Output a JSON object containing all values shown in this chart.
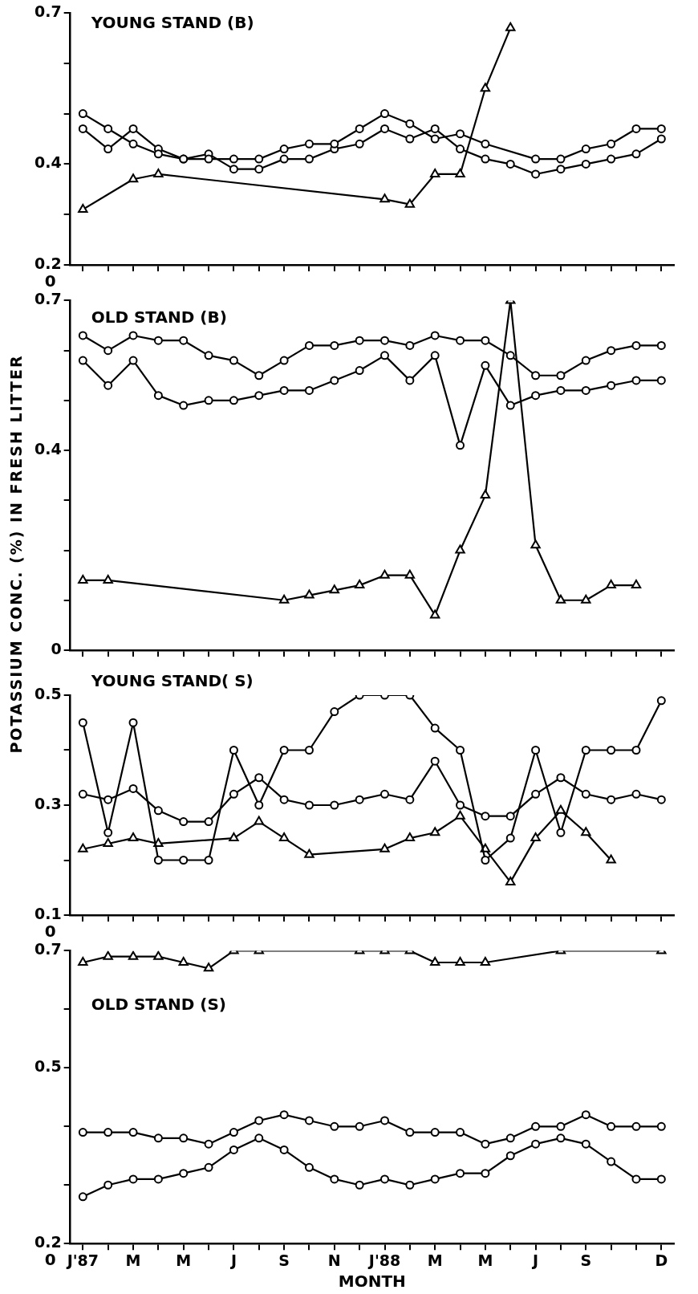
{
  "chart_data": [
    {
      "type": "line",
      "title": "YOUNG STAND (B)",
      "tick_labels": "y",
      "grid": false,
      "legend": false,
      "annotations": [
        "0"
      ],
      "categories": [
        null,
        null,
        null,
        null,
        null,
        null,
        null,
        null,
        null,
        null,
        null,
        null,
        null,
        null,
        null,
        null,
        null,
        null,
        null,
        null,
        null,
        null,
        null,
        null
      ],
      "ylim": [
        0.2,
        0.7
      ],
      "yticks": [
        0.7,
        {
          "value": 0.6,
          "label": null
        },
        {
          "value": 0.5,
          "label": null
        },
        0.4,
        {
          "value": 0.3,
          "label": null
        },
        0.2
      ],
      "series": [
        {
          "color": "#000000",
          "marker": "circle",
          "values": [
            0.5,
            0.47,
            0.44,
            0.42,
            0.41,
            0.41,
            0.41,
            0.41,
            0.43,
            0.44,
            0.44,
            0.47,
            0.5,
            0.48,
            0.45,
            0.46,
            0.44,
            null,
            0.41,
            0.41,
            0.43,
            0.44,
            0.47,
            0.47
          ]
        },
        {
          "color": "#000000",
          "marker": "circle",
          "values": [
            0.47,
            0.43,
            0.47,
            0.43,
            0.41,
            0.42,
            0.39,
            0.39,
            0.41,
            0.41,
            0.43,
            0.44,
            0.47,
            0.45,
            0.47,
            0.43,
            0.41,
            0.4,
            0.38,
            0.39,
            0.4,
            0.41,
            0.42,
            0.45
          ]
        },
        {
          "color": "#000000",
          "marker": "triangle",
          "values": [
            0.31,
            null,
            0.37,
            0.38,
            null,
            null,
            null,
            null,
            null,
            null,
            null,
            null,
            0.33,
            0.32,
            0.38,
            0.38,
            0.55,
            0.67,
            null,
            null,
            null,
            null,
            null,
            null
          ]
        }
      ]
    },
    {
      "type": "line",
      "title": "OLD STAND (B)",
      "ylabel": "POTASSIUM CONC. (%) IN FRESH LITTER",
      "tick_labels": "y",
      "grid": false,
      "legend": false,
      "categories": [
        null,
        null,
        null,
        null,
        null,
        null,
        null,
        null,
        null,
        null,
        null,
        null,
        null,
        null,
        null,
        null,
        null,
        null,
        null,
        null,
        null,
        null,
        null,
        null
      ],
      "ylim": [
        0,
        0.7
      ],
      "yticks": [
        0.7,
        {
          "value": 0.6,
          "label": null
        },
        {
          "value": 0.5,
          "label": null
        },
        0.4,
        {
          "value": 0.3,
          "label": null
        },
        {
          "value": 0.2,
          "label": null
        },
        {
          "value": 0.1,
          "label": null
        },
        0
      ],
      "series": [
        {
          "color": "#000000",
          "marker": "circle",
          "values": [
            0.63,
            0.6,
            0.63,
            0.62,
            0.62,
            0.59,
            0.58,
            0.55,
            0.58,
            0.61,
            0.61,
            0.62,
            0.62,
            0.61,
            0.63,
            0.62,
            0.62,
            0.59,
            0.55,
            0.55,
            0.58,
            0.6,
            0.61,
            0.61
          ]
        },
        {
          "color": "#000000",
          "marker": "circle",
          "values": [
            0.58,
            0.53,
            0.58,
            0.51,
            0.49,
            0.5,
            0.5,
            0.51,
            0.52,
            0.52,
            0.54,
            0.56,
            0.59,
            0.54,
            0.59,
            0.41,
            0.57,
            0.49,
            0.51,
            0.52,
            0.52,
            0.53,
            0.54,
            0.54
          ]
        },
        {
          "color": "#000000",
          "marker": "triangle",
          "values": [
            0.14,
            0.14,
            null,
            null,
            null,
            null,
            null,
            null,
            0.1,
            0.11,
            0.12,
            0.13,
            0.15,
            0.15,
            0.07,
            0.2,
            0.31,
            0.7,
            0.21,
            0.1,
            0.1,
            0.13,
            0.13,
            null
          ]
        }
      ]
    },
    {
      "type": "line",
      "title": "YOUNG STAND( S)",
      "tick_labels": "y",
      "grid": false,
      "legend": false,
      "annotations": [
        "0"
      ],
      "categories": [
        null,
        null,
        null,
        null,
        null,
        null,
        null,
        null,
        null,
        null,
        null,
        null,
        null,
        null,
        null,
        null,
        null,
        null,
        null,
        null,
        null,
        null,
        null,
        null
      ],
      "ylim": [
        0.1,
        0.5
      ],
      "yticks": [
        0.5,
        {
          "value": 0.4,
          "label": null
        },
        0.3,
        {
          "value": 0.2,
          "label": null
        },
        0.1
      ],
      "series": [
        {
          "color": "#000000",
          "marker": "circle",
          "values": [
            0.45,
            0.25,
            0.45,
            0.2,
            0.2,
            0.2,
            0.4,
            0.3,
            0.4,
            0.4,
            0.47,
            0.5,
            0.5,
            0.5,
            0.44,
            0.4,
            0.2,
            0.24,
            0.4,
            0.25,
            0.4,
            0.4,
            0.4,
            0.49
          ]
        },
        {
          "color": "#000000",
          "marker": "circle",
          "values": [
            0.32,
            0.31,
            0.33,
            0.29,
            0.27,
            0.27,
            0.32,
            0.35,
            0.31,
            0.3,
            0.3,
            0.31,
            0.32,
            0.31,
            0.38,
            0.3,
            0.28,
            0.28,
            0.32,
            0.35,
            0.32,
            0.31,
            0.32,
            0.31
          ]
        },
        {
          "color": "#000000",
          "marker": "triangle",
          "values": [
            0.22,
            0.23,
            0.24,
            0.23,
            null,
            null,
            0.24,
            0.27,
            0.24,
            0.21,
            null,
            null,
            0.22,
            0.24,
            0.25,
            0.28,
            0.22,
            0.16,
            0.24,
            0.29,
            0.25,
            0.2,
            null,
            null
          ]
        }
      ]
    },
    {
      "type": "line",
      "title": "OLD STAND (S)",
      "xlabel": "MONTH",
      "grid": false,
      "legend": false,
      "annotations": [
        "0"
      ],
      "categories": [
        "J'87",
        null,
        "M",
        null,
        "M",
        null,
        "J",
        null,
        "S",
        null,
        "N",
        null,
        "J'88",
        null,
        "M",
        null,
        "M",
        null,
        "J",
        null,
        "S",
        null,
        null,
        "D"
      ],
      "ylim": [
        0.2,
        0.7
      ],
      "yticks": [
        0.7,
        {
          "value": 0.6,
          "label": null
        },
        0.5,
        {
          "value": 0.4,
          "label": null
        },
        {
          "value": 0.3,
          "label": null
        },
        0.2
      ],
      "series": [
        {
          "color": "#000000",
          "marker": "triangle",
          "values": [
            0.68,
            0.69,
            0.69,
            0.69,
            0.68,
            0.67,
            0.7,
            0.7,
            null,
            null,
            null,
            0.7,
            0.7,
            0.7,
            0.68,
            0.68,
            0.68,
            null,
            null,
            0.7,
            null,
            null,
            null,
            0.7
          ]
        },
        {
          "color": "#000000",
          "marker": "circle",
          "values": [
            0.39,
            0.39,
            0.39,
            0.38,
            0.38,
            0.37,
            0.39,
            0.41,
            0.42,
            0.41,
            0.4,
            0.4,
            0.41,
            0.39,
            0.39,
            0.39,
            0.37,
            0.38,
            0.4,
            0.4,
            0.42,
            0.4,
            0.4,
            0.4
          ]
        },
        {
          "color": "#000000",
          "marker": "circle",
          "values": [
            0.28,
            0.3,
            0.31,
            0.31,
            0.32,
            0.33,
            0.36,
            0.38,
            0.36,
            0.33,
            0.31,
            0.3,
            0.31,
            0.3,
            0.31,
            0.32,
            0.32,
            0.35,
            0.37,
            0.38,
            0.37,
            0.34,
            0.31,
            0.31
          ]
        }
      ]
    }
  ]
}
